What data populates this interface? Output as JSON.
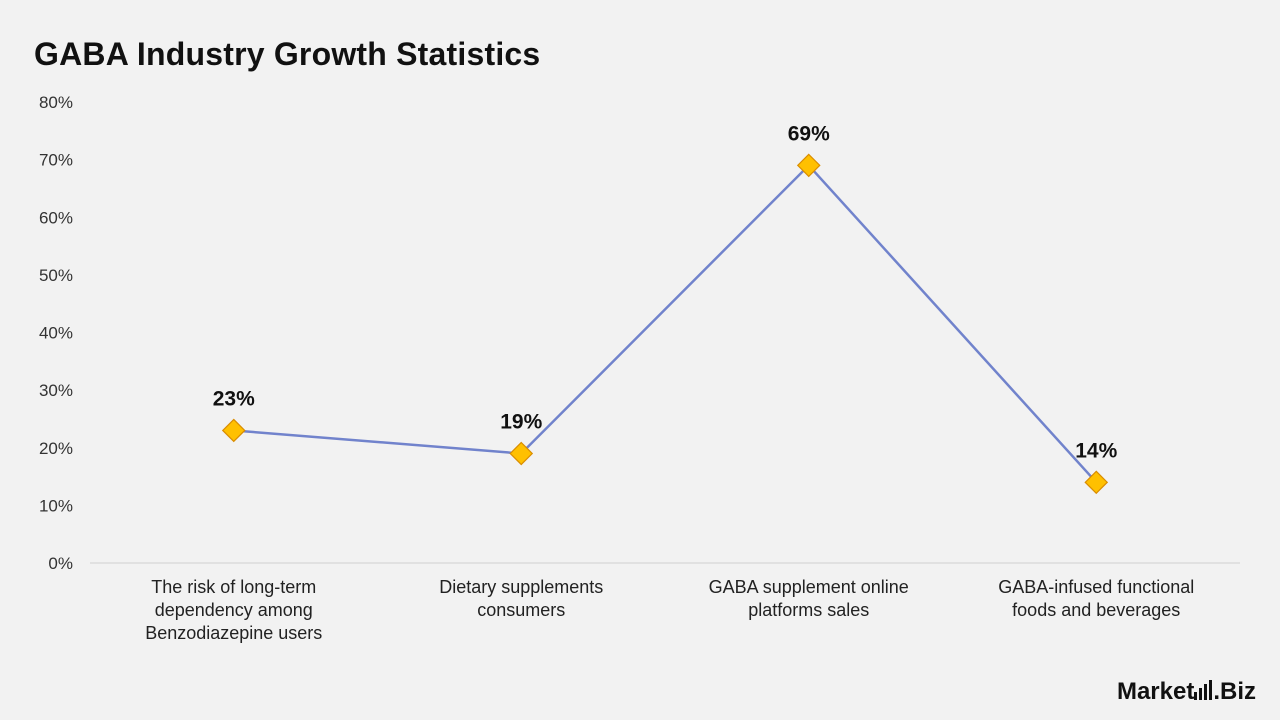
{
  "chart_data": {
    "type": "line",
    "title": "GABA Industry Growth Statistics",
    "categories": [
      [
        "The risk of long-term",
        "dependency among",
        "Benzodiazepine users"
      ],
      [
        "Dietary supplements",
        "consumers"
      ],
      [
        "GABA supplement online",
        "platforms sales"
      ],
      [
        "GABA-infused functional",
        "foods and beverages"
      ]
    ],
    "values": [
      23,
      19,
      69,
      14
    ],
    "data_labels": [
      "23%",
      "19%",
      "69%",
      "14%"
    ],
    "ylim": [
      0,
      80
    ],
    "yticks": [
      "0%",
      "10%",
      "20%",
      "30%",
      "40%",
      "50%",
      "60%",
      "70%",
      "80%"
    ],
    "grid": false,
    "legend": "none",
    "line_color": "#7183cc",
    "marker": "diamond",
    "marker_color": "#ffc000",
    "marker_edge_color": "#d98c00"
  },
  "brand": {
    "name_left": "Market",
    "name_right": ".Biz"
  }
}
